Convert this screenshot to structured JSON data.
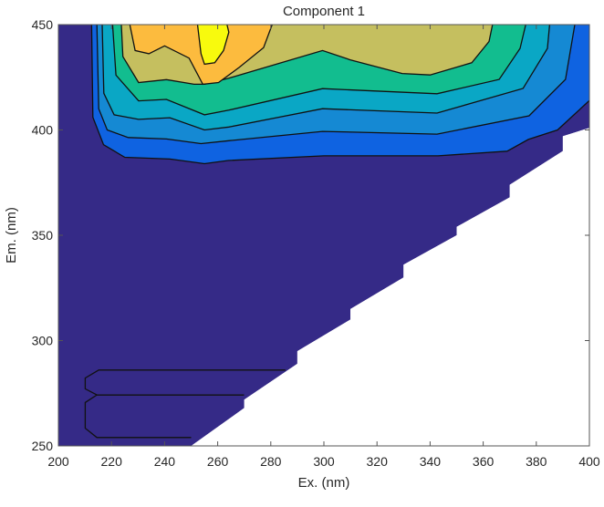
{
  "chart_data": {
    "type": "contour",
    "title": "Component 1",
    "xlabel": "Ex. (nm)",
    "ylabel": "Em. (nm)",
    "xlim": [
      200,
      400
    ],
    "ylim": [
      250,
      450
    ],
    "xticks": [
      200,
      220,
      240,
      260,
      280,
      300,
      320,
      340,
      360,
      380,
      400
    ],
    "yticks": [
      250,
      300,
      350,
      400,
      450
    ],
    "grid": false,
    "colormap": "parula",
    "background_color": "#352a87",
    "data_region": [
      [
        200,
        250
      ],
      [
        250,
        250
      ],
      [
        270,
        268
      ],
      [
        270,
        272
      ],
      [
        290,
        289
      ],
      [
        290,
        295
      ],
      [
        310,
        310
      ],
      [
        310,
        315
      ],
      [
        330,
        330
      ],
      [
        330,
        336
      ],
      [
        350,
        350
      ],
      [
        350,
        354
      ],
      [
        370,
        368
      ],
      [
        370,
        374
      ],
      [
        390,
        390
      ],
      [
        390,
        397
      ],
      [
        400,
        401
      ],
      [
        400,
        450
      ],
      [
        200,
        450
      ]
    ],
    "levels": [
      {
        "color": "#0f63e1",
        "line": [
          [
            212.5,
            450
          ],
          [
            213,
            406
          ],
          [
            217,
            393
          ],
          [
            225,
            387
          ],
          [
            242,
            386.2
          ],
          [
            255,
            384
          ],
          [
            264,
            385.5
          ],
          [
            300,
            387.7
          ],
          [
            343,
            387.7
          ],
          [
            369,
            389.9
          ],
          [
            377,
            395.5
          ],
          [
            388,
            400
          ],
          [
            400,
            414
          ],
          [
            400,
            450
          ]
        ]
      },
      {
        "color": "#1589d3",
        "line": [
          [
            214.5,
            450
          ],
          [
            215.2,
            410.1
          ],
          [
            218.4,
            400
          ],
          [
            226.3,
            396.4
          ],
          [
            240.7,
            395.7
          ],
          [
            253.7,
            393.5
          ],
          [
            264.2,
            394.9
          ],
          [
            299.5,
            399.3
          ],
          [
            342.6,
            398
          ],
          [
            377.3,
            406.7
          ],
          [
            391,
            424
          ],
          [
            394.5,
            450
          ]
        ]
      },
      {
        "color": "#0aa7c5",
        "line": [
          [
            216.5,
            450
          ],
          [
            217.1,
            417.4
          ],
          [
            221,
            407.2
          ],
          [
            230.2,
            405
          ],
          [
            242,
            405.8
          ],
          [
            255,
            400
          ],
          [
            264.2,
            401.4
          ],
          [
            299.5,
            410.1
          ],
          [
            342.6,
            408
          ],
          [
            375,
            419.7
          ],
          [
            384.2,
            438.7
          ],
          [
            385,
            450
          ]
        ]
      },
      {
        "color": "#12bd8f",
        "line": [
          [
            220.4,
            450
          ],
          [
            221.7,
            426
          ],
          [
            230.2,
            413.8
          ],
          [
            240.7,
            414.5
          ],
          [
            255,
            407.2
          ],
          [
            264.2,
            409.4
          ],
          [
            299.5,
            419.6
          ],
          [
            342.6,
            417.2
          ],
          [
            366,
            424
          ],
          [
            373.9,
            438.7
          ],
          [
            376,
            450
          ]
        ]
      },
      {
        "color": "#c5bf5f",
        "line": [
          [
            223.7,
            450
          ],
          [
            224.3,
            434.8
          ],
          [
            230.2,
            422.5
          ],
          [
            240.7,
            423.9
          ],
          [
            251.1,
            421.7
          ],
          [
            255,
            421.7
          ],
          [
            264.2,
            424.6
          ],
          [
            279.9,
            430.4
          ],
          [
            299.5,
            437.7
          ],
          [
            309.9,
            433.3
          ],
          [
            329.5,
            426.8
          ],
          [
            340,
            426.1
          ],
          [
            355.7,
            431.9
          ],
          [
            362.2,
            442
          ],
          [
            363.5,
            450
          ]
        ]
      },
      {
        "color": "#fcbb3e",
        "line": [
          [
            226.9,
            450
          ],
          [
            228.9,
            437.7
          ],
          [
            234.1,
            436.2
          ],
          [
            240,
            439.9
          ],
          [
            249.2,
            434.1
          ],
          [
            254.4,
            421.7
          ],
          [
            260.3,
            422.5
          ],
          [
            268.1,
            429.7
          ],
          [
            277.3,
            439.1
          ],
          [
            280.5,
            450
          ]
        ]
      },
      {
        "color": "#f8fa0d",
        "line": [
          [
            252.4,
            450
          ],
          [
            253.7,
            436.2
          ],
          [
            255,
            431.2
          ],
          [
            258.9,
            431.9
          ],
          [
            262.2,
            437.7
          ],
          [
            264.2,
            446.4
          ],
          [
            263.5,
            450
          ]
        ]
      }
    ],
    "extra_contours": [
      [
        [
          285.5,
          286
        ],
        [
          215.2,
          286
        ],
        [
          210.1,
          282.2
        ],
        [
          210.1,
          277.1
        ],
        [
          214.5,
          274.2
        ],
        [
          269.9,
          274.2
        ]
      ],
      [
        [
          269.9,
          274.2
        ],
        [
          214.5,
          274.2
        ],
        [
          210.1,
          270.6
        ],
        [
          210.1,
          258.4
        ],
        [
          214.5,
          254
        ],
        [
          250,
          254
        ]
      ]
    ]
  }
}
